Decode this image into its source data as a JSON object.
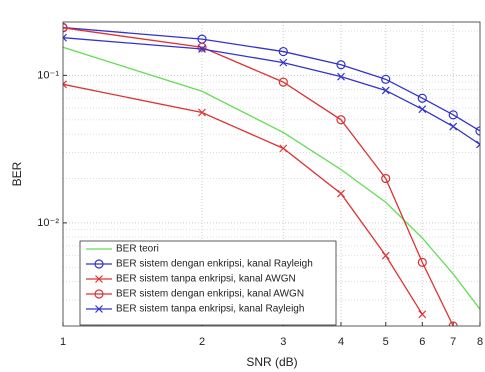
{
  "chart_data": {
    "type": "line",
    "xlabel": "SNR (dB)",
    "ylabel": "BER",
    "x": [
      1,
      2,
      3,
      4,
      5,
      6,
      7,
      8
    ],
    "xscale": "log",
    "yscale": "log",
    "grid": true,
    "legend": "lower left",
    "xlim": [
      1,
      8
    ],
    "xticks": [
      1,
      2,
      3,
      4,
      5,
      6,
      7,
      8
    ],
    "ylim": [
      0.002,
      0.23
    ],
    "yticks": [
      {
        "value": 0.01,
        "label": "10⁻²"
      },
      {
        "value": 0.1,
        "label": "10⁻¹"
      }
    ],
    "yminorticks": [
      0.003,
      0.004,
      0.005,
      0.006,
      0.007,
      0.008,
      0.009,
      0.02,
      0.03,
      0.04,
      0.05,
      0.06,
      0.07,
      0.08,
      0.09,
      0.2
    ],
    "series": [
      {
        "name": "BER teori",
        "color": "#66dd55",
        "marker": "none",
        "values": [
          0.155,
          0.078,
          0.041,
          0.023,
          0.0138,
          0.0079,
          0.0045,
          0.0026
        ]
      },
      {
        "name": "BER sistem dengan enkripsi, kanal Rayleigh",
        "color": "#3333cc",
        "marker": "o",
        "values": [
          0.211,
          0.176,
          0.145,
          0.118,
          0.094,
          0.07,
          0.054,
          0.042
        ]
      },
      {
        "name": "BER sistem tanpa enkripsi, kanal AWGN",
        "color": "#dd3333",
        "marker": "x",
        "values": [
          0.087,
          0.056,
          0.032,
          0.0158,
          0.006,
          0.0024,
          null,
          null
        ]
      },
      {
        "name": "BER sistem dengan enkripsi, kanal AWGN",
        "color": "#dd3333",
        "marker": "o",
        "values": [
          0.21,
          0.155,
          0.09,
          0.05,
          0.02,
          0.0054,
          0.002,
          null
        ]
      },
      {
        "name": "BER sistem tanpa enkripsi, kanal Rayleigh",
        "color": "#3333cc",
        "marker": "x",
        "values": [
          0.18,
          0.151,
          0.122,
          0.098,
          0.079,
          0.059,
          0.045,
          0.034
        ]
      }
    ]
  }
}
